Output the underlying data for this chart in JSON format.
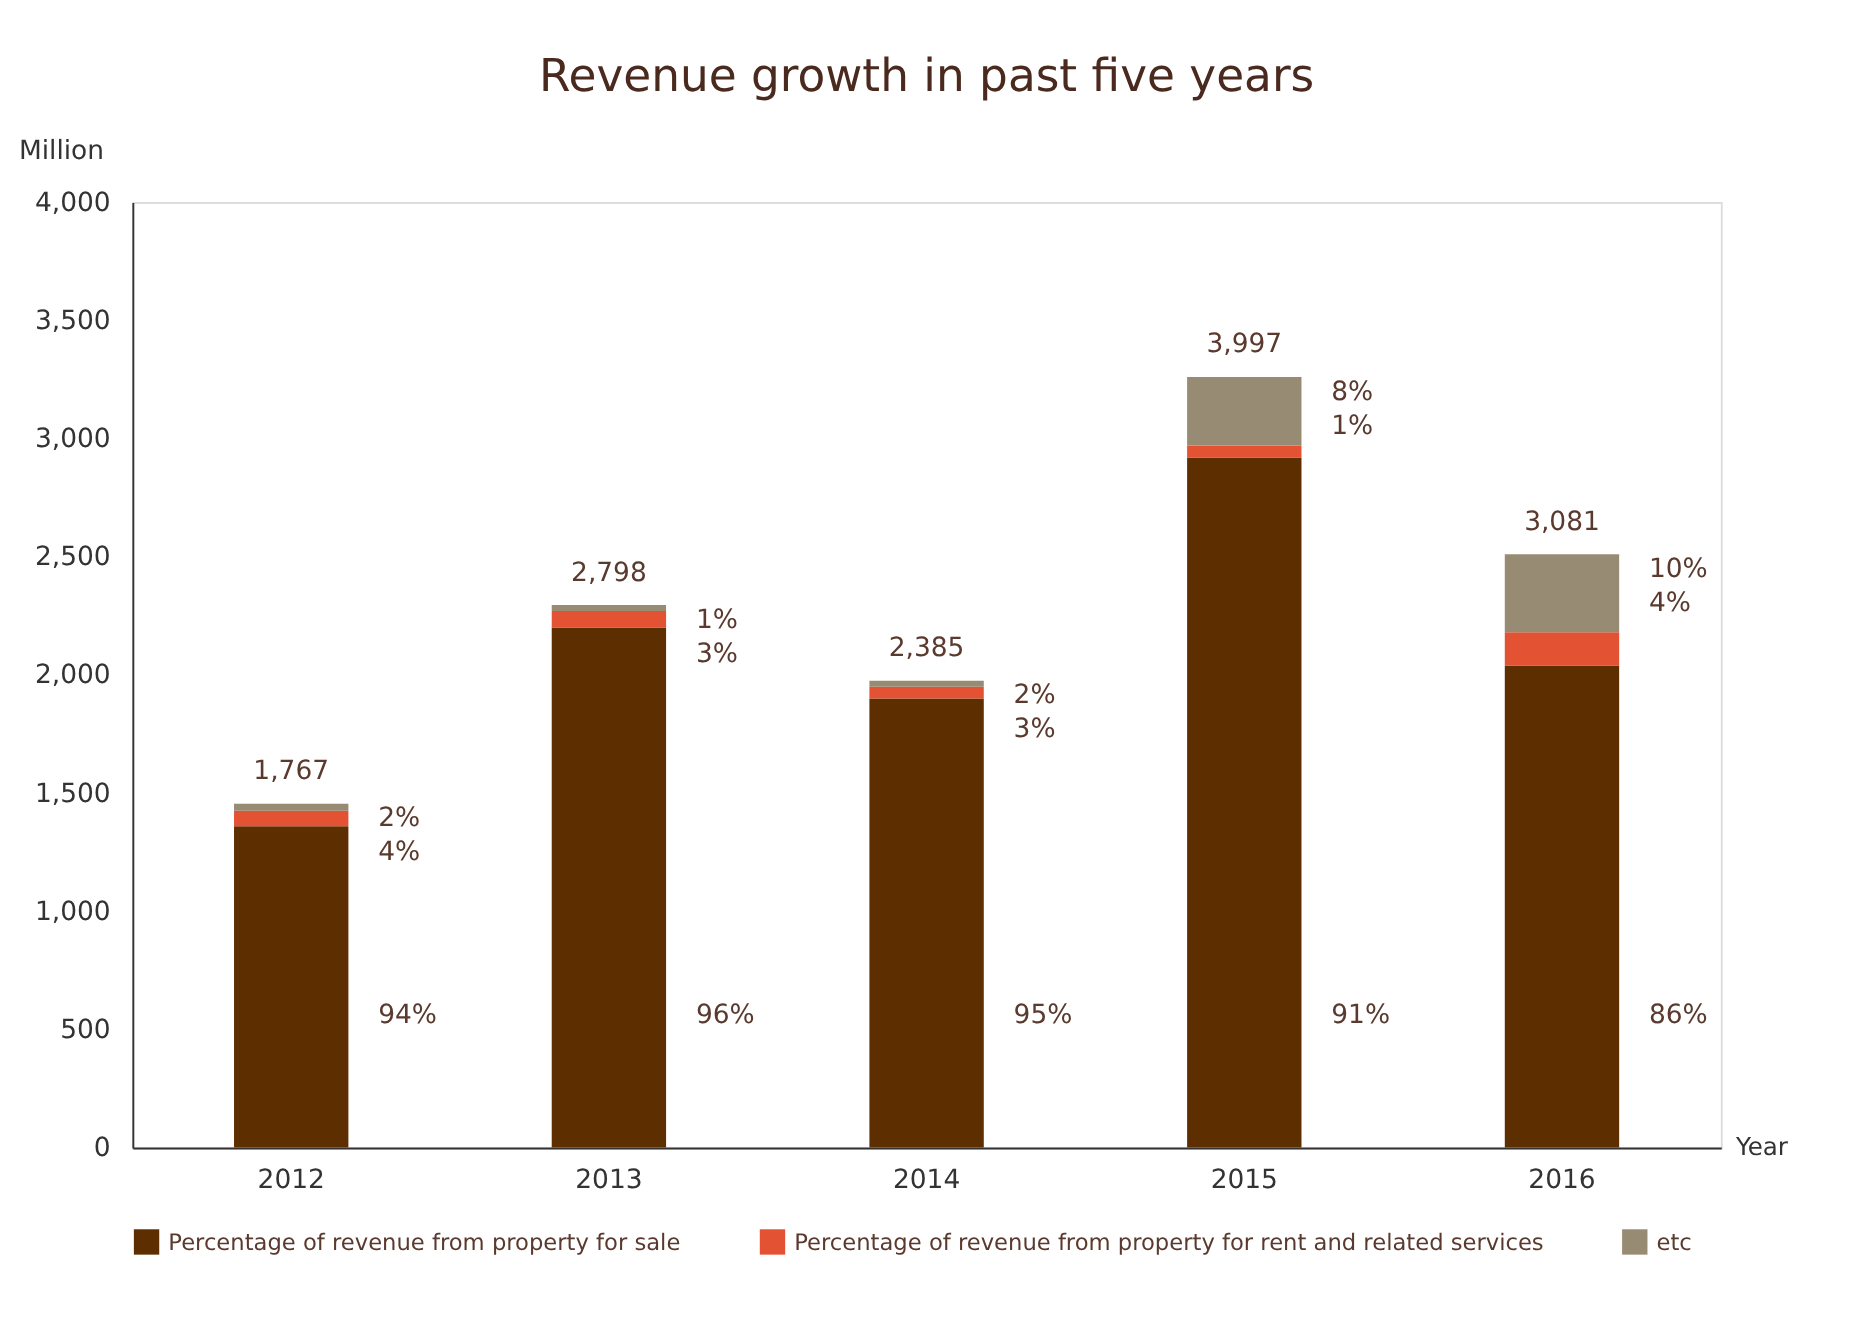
{
  "chart_data": {
    "type": "bar",
    "title": "Revenue growth in past five years",
    "ylabel": "Million",
    "xlabel": "Year",
    "categories": [
      "2012",
      "2013",
      "2014",
      "2015",
      "2016"
    ],
    "stacked": true,
    "series": [
      {
        "name": "Percentage of revenue from property for sale",
        "color": "#5c2e00",
        "values": [
          1360,
          2200,
          1900,
          2920,
          2040
        ]
      },
      {
        "name": "Percentage of revenue from property for rent and related services",
        "color": "#e35233",
        "values": [
          65,
          70,
          50,
          50,
          140
        ]
      },
      {
        "name": "etc",
        "color": "#988b73",
        "values": [
          30,
          25,
          25,
          290,
          330
        ]
      }
    ],
    "annotations": [
      "1,767",
      "2%",
      "4%",
      "94%",
      "2,798",
      "1%",
      "3%",
      "96%",
      "2,385",
      "2%",
      "3%",
      "95%",
      "3,997",
      "8%",
      "1%",
      "91%",
      "3,081",
      "10%",
      "4%",
      "86%"
    ],
    "ylim": [
      0,
      4000
    ],
    "yticks": [
      0,
      500,
      {
        "value": 1000,
        "label": "1,000"
      },
      {
        "value": 1500,
        "label": "1,500"
      },
      {
        "value": 2000,
        "label": "2,000"
      },
      {
        "value": 2500,
        "label": "2,500"
      },
      {
        "value": 3000,
        "label": "3,000"
      },
      {
        "value": 3500,
        "label": "3,500"
      },
      {
        "value": 4000,
        "label": "4,000"
      }
    ],
    "grid": false,
    "legend": "bottom"
  }
}
